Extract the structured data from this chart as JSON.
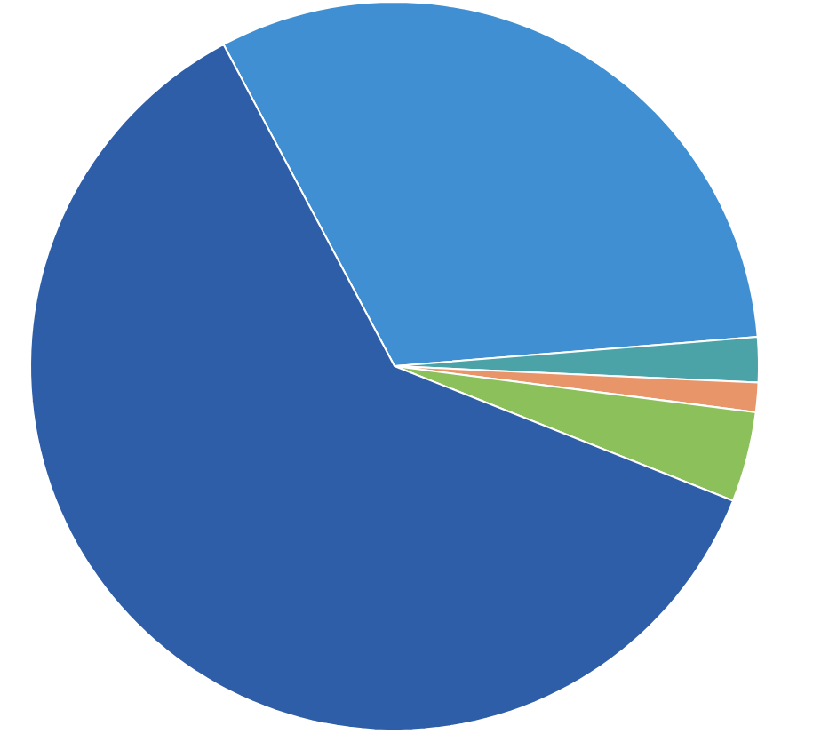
{
  "chart_data": {
    "type": "pie",
    "categories": [
      null,
      null,
      null,
      null,
      null
    ],
    "values": [
      31.5,
      2,
      1.3,
      4,
      61.2
    ],
    "colors": [
      "#3f8fd2",
      "#4ba3a8",
      "#e8956a",
      "#8cc05a",
      "#2f5ea8"
    ]
  }
}
